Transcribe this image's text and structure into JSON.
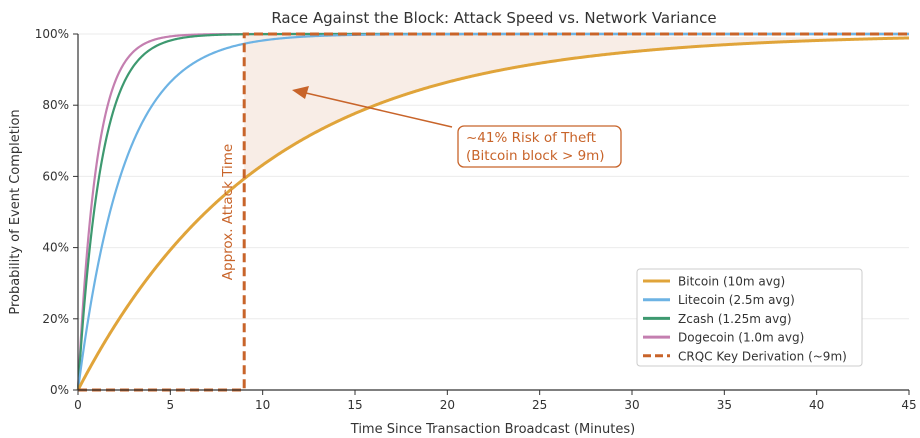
{
  "chart_data": {
    "type": "line",
    "title": "Race Against the Block: Attack Speed vs. Network Variance",
    "xlabel": "Time Since Transaction Broadcast (Minutes)",
    "ylabel": "Probability of Event Completion",
    "xlim": [
      0,
      45
    ],
    "ylim": [
      0,
      1
    ],
    "xticks": [
      0,
      5,
      10,
      15,
      20,
      25,
      30,
      35,
      40,
      45
    ],
    "yticks": [
      {
        "v": 0,
        "label": "0%"
      },
      {
        "v": 0.2,
        "label": "20%"
      },
      {
        "v": 0.4,
        "label": "40%"
      },
      {
        "v": 0.6,
        "label": "60%"
      },
      {
        "v": 0.8,
        "label": "80%"
      },
      {
        "v": 1,
        "label": "100%"
      }
    ],
    "grid": "horizontal",
    "legend_position": "bottom-right",
    "series": [
      {
        "name": "Bitcoin (10m avg)",
        "mean_minutes": 10,
        "formula": "1-exp(-t/mean)",
        "color": "#E0A43A"
      },
      {
        "name": "Litecoin (2.5m avg)",
        "mean_minutes": 2.5,
        "formula": "1-exp(-t/mean)",
        "color": "#6DB3E4"
      },
      {
        "name": "Zcash (1.25m avg)",
        "mean_minutes": 1.25,
        "formula": "1-exp(-t/mean)",
        "color": "#3E9970"
      },
      {
        "name": "Dogecoin (1.0m avg)",
        "mean_minutes": 1.0,
        "formula": "1-exp(-t/mean)",
        "color": "#C47FB0"
      }
    ],
    "step": {
      "name": "CRQC Key Derivation (~9m)",
      "x": 9,
      "color": "#C8642A"
    },
    "shaded_region": {
      "from_x": 9,
      "to_x": 45,
      "between": "Bitcoin and 100%",
      "color": "#F8EDE6"
    },
    "annotations": {
      "vertical_label": "Approx. Attack Time",
      "risk_line1": "~41% Risk of Theft",
      "risk_line2": "(Bitcoin block > 9m)"
    }
  }
}
